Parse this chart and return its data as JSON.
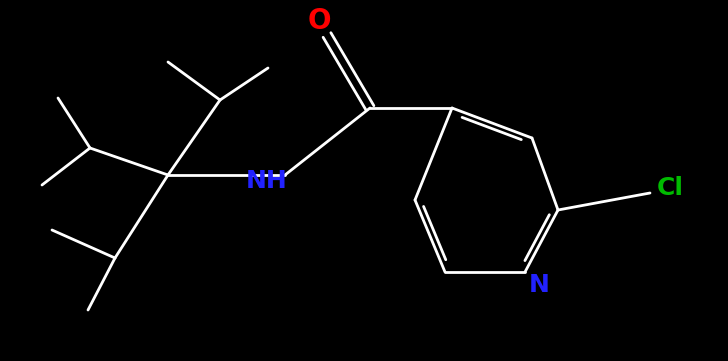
{
  "background_color": "#000000",
  "bond_color": "#ffffff",
  "O_color": "#ff0000",
  "N_color": "#2222ff",
  "Cl_color": "#00bb00",
  "NH_label": "NH",
  "N_label": "N",
  "O_label": "O",
  "Cl_label": "Cl",
  "figsize": [
    7.28,
    3.61
  ],
  "dpi": 100,
  "lw": 2.0,
  "font_size": 15
}
